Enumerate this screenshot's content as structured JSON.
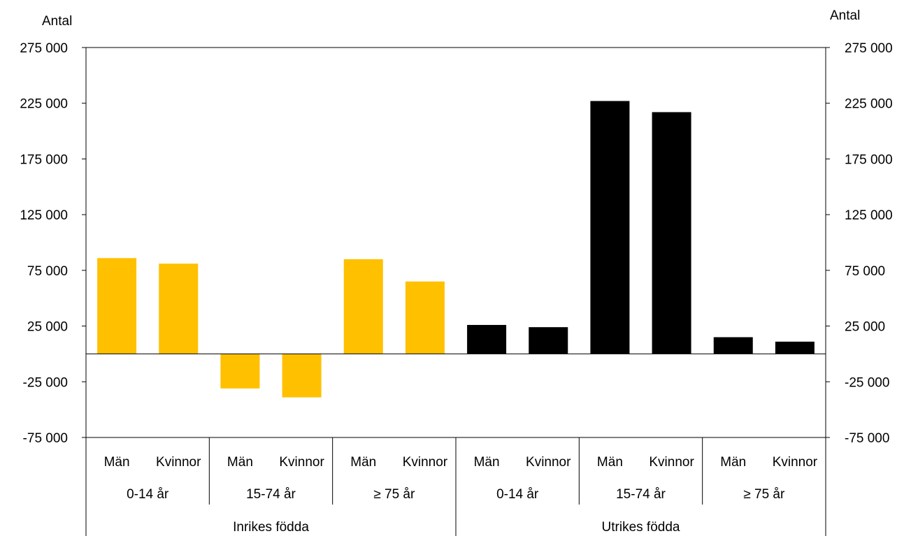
{
  "chart_data": {
    "type": "bar",
    "left_axis_label": "Antal",
    "right_axis_label": "Antal",
    "y_ticks": [
      275000,
      225000,
      175000,
      125000,
      75000,
      25000,
      -25000,
      -75000
    ],
    "y_tick_labels": [
      "275 000",
      "225 000",
      "175 000",
      "125 000",
      "75 000",
      "25 000",
      "-25 000",
      "-75 000"
    ],
    "ylim": [
      -75000,
      275000
    ],
    "categories": [
      "Män",
      "Kvinnor",
      "Män",
      "Kvinnor",
      "Män",
      "Kvinnor",
      "Män",
      "Kvinnor",
      "Män",
      "Kvinnor",
      "Män",
      "Kvinnor"
    ],
    "values": [
      86000,
      81000,
      -31000,
      -39000,
      85000,
      65000,
      26000,
      24000,
      227000,
      217000,
      15000,
      11000
    ],
    "bar_colors": [
      "#ffc000",
      "#ffc000",
      "#ffc000",
      "#ffc000",
      "#ffc000",
      "#ffc000",
      "#000000",
      "#000000",
      "#000000",
      "#000000",
      "#000000",
      "#000000"
    ],
    "age_groups": [
      "0-14 år",
      "15-74 år",
      "≥ 75 år",
      "0-14 år",
      "15-74 år",
      "≥ 75 år"
    ],
    "origin_groups": [
      "Inrikes födda",
      "Utrikes födda"
    ],
    "grid": false
  }
}
